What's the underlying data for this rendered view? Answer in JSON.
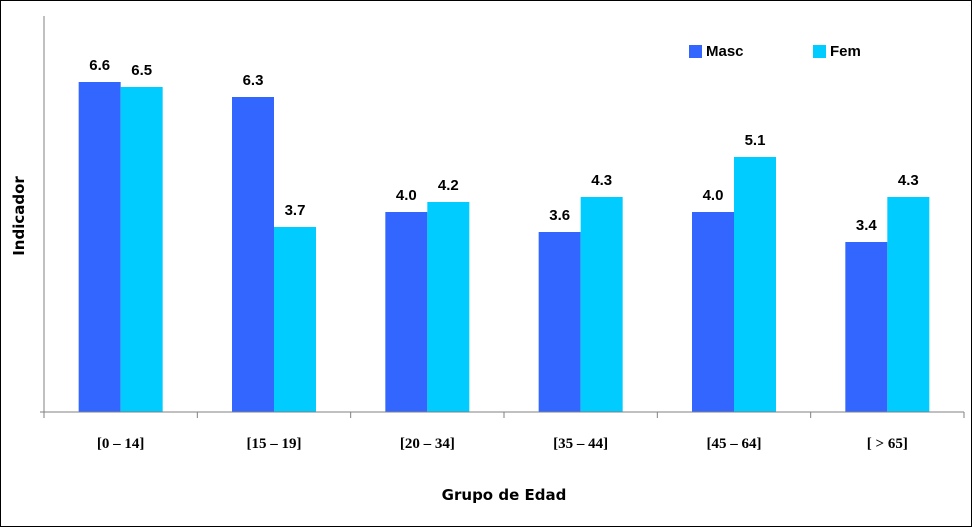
{
  "chart_data": {
    "type": "bar",
    "title": "",
    "xlabel": "Grupo de Edad",
    "ylabel": "Indicador",
    "categories": [
      "[0 – 14]",
      "[15 – 19]",
      "[20 – 34]",
      "[35 – 44]",
      "[45 – 64]",
      "[ > 65]"
    ],
    "series": [
      {
        "name": "Masc",
        "color": "#3366ff",
        "values": [
          6.6,
          6.3,
          4.0,
          3.6,
          4.0,
          3.4
        ],
        "labels": [
          "6.6",
          "6.3",
          "4.0",
          "3.6",
          "4.0",
          "3.4"
        ]
      },
      {
        "name": "Fem",
        "color": "#00ccff",
        "values": [
          6.5,
          3.7,
          4.2,
          4.3,
          5.1,
          4.3
        ],
        "labels": [
          "6.5",
          "3.7",
          "4.2",
          "4.3",
          "5.1",
          "4.3"
        ]
      }
    ],
    "ylim": [
      0,
      6.6
    ],
    "grid": false,
    "legend_position": "top-right"
  }
}
